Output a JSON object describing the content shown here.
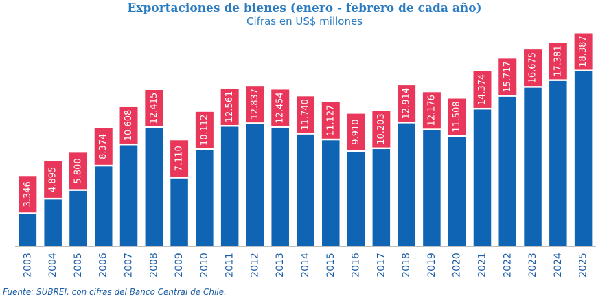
{
  "chart_data": {
    "type": "bar",
    "title": "Exportaciones de bienes (enero - febrero de cada año)",
    "subtitle": "Cifras en US$ millones",
    "categories": [
      "2003",
      "2004",
      "2005",
      "2006",
      "2007",
      "2008",
      "2009",
      "2010",
      "2011",
      "2012",
      "2013",
      "2014",
      "2015",
      "2016",
      "2017",
      "2018",
      "2019",
      "2020",
      "2021",
      "2022",
      "2023",
      "2024",
      "2025"
    ],
    "values": [
      3346,
      4895,
      5800,
      8374,
      10608,
      12415,
      7110,
      10112,
      12561,
      12837,
      12454,
      11740,
      11127,
      9910,
      10203,
      12914,
      12176,
      11508,
      14374,
      15717,
      16675,
      17381,
      18387
    ],
    "value_labels": [
      "3.346",
      "4.895",
      "5.800",
      "8.374",
      "10.608",
      "12.415",
      "7.110",
      "10.112",
      "12.561",
      "12.837",
      "12.454",
      "11.740",
      "11.127",
      "9.910",
      "10.203",
      "12.914",
      "12.176",
      "11.508",
      "14.374",
      "15.717",
      "16.675",
      "17.381",
      "18.387"
    ],
    "ylim": [
      0,
      18387
    ],
    "grid": false,
    "legend": "none",
    "xlabel": "",
    "ylabel": "",
    "colors": {
      "bar": "#0f64b4",
      "label_box": "#e8375a",
      "label_text": "#ffffff",
      "axis_text": "#1f5fa8",
      "title": "#2a7bc0"
    }
  },
  "source_note": "Fuente: SUBREI, con cifras del Banco Central de Chile."
}
